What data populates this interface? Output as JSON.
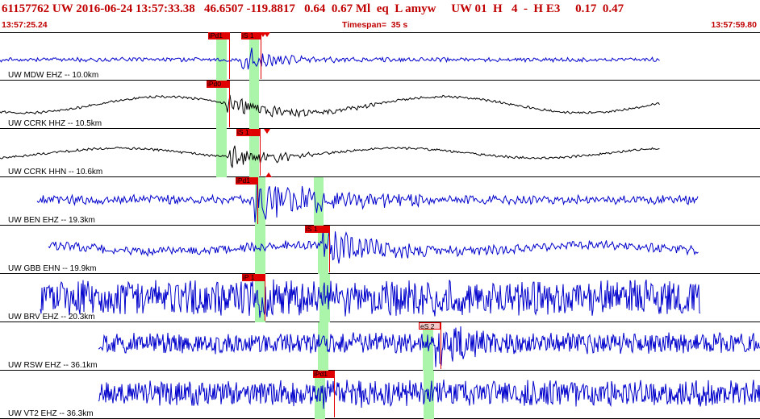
{
  "header": {
    "title": "61157762 UW 2016-06-24 13:57:33.38   46.6507 -119.8817   0.64  0.67 Ml  eq  L amyw     UW 01  H   4  -  H E3     0.17  0.47",
    "start_time": "13:57:25.24",
    "timespan": "Timespan=  35 s",
    "end_time": "13:57:59.80"
  },
  "channels": [
    {
      "label": "UW MDW EHZ -- 10.0km",
      "color": "#0000cc",
      "picks": [
        {
          "label": "iPd1"
        },
        {
          "label": "iS 1"
        }
      ]
    },
    {
      "label": "UW CCRK HHZ -- 10.5km",
      "color": "#000000",
      "picks": [
        {
          "label": "iPd0"
        }
      ]
    },
    {
      "label": "UW CCRK HHN -- 10.6km",
      "color": "#000000",
      "picks": [
        {
          "label": "iS 1"
        }
      ]
    },
    {
      "label": "UW BEN EHZ -- 19.3km",
      "color": "#0000cc",
      "picks": [
        {
          "label": "iPd1"
        }
      ]
    },
    {
      "label": "UW GBB EHN -- 19.9km",
      "color": "#0000cc",
      "picks": [
        {
          "label": "iS 1"
        }
      ]
    },
    {
      "label": "UW BRV EHZ -- 20.3km",
      "color": "#0000cc",
      "picks": [
        {
          "label": "iP 1"
        }
      ]
    },
    {
      "label": "UW RSW EHZ -- 36.1km",
      "color": "#0000cc",
      "picks": [
        {
          "label": "eS 2"
        }
      ]
    },
    {
      "label": "UW VT2 EHZ -- 36.3km",
      "color": "#0000cc",
      "picks": [
        {
          "label": "iPd1"
        }
      ]
    }
  ]
}
